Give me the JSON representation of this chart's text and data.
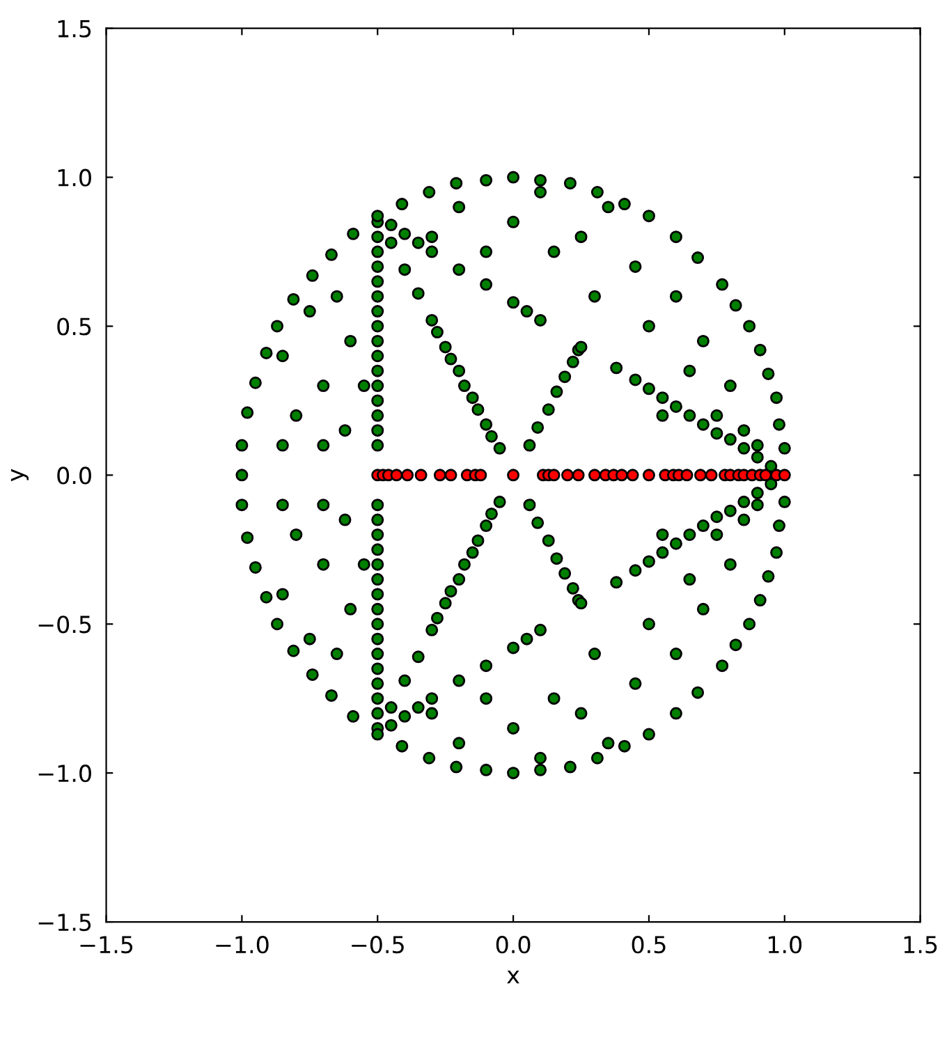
{
  "chart_data": {
    "type": "scatter",
    "xlabel": "x",
    "ylabel": "y",
    "xlim": [
      -1.5,
      1.5
    ],
    "ylim": [
      -1.5,
      1.5
    ],
    "xticks": [
      {
        "value": -1.5,
        "label": "−1.5"
      },
      {
        "value": -1.0,
        "label": "−1.0"
      },
      {
        "value": -0.5,
        "label": "−0.5"
      },
      {
        "value": 0,
        "label": "0.0"
      },
      0.5,
      {
        "value": 1,
        "label": "1.0"
      },
      1.5
    ],
    "yticks": [
      {
        "value": -1.5,
        "label": "−1.5"
      },
      {
        "value": -1.0,
        "label": "−1.0"
      },
      {
        "value": -0.5,
        "label": "−0.5"
      },
      {
        "value": 0,
        "label": "0.0"
      },
      0.5,
      {
        "value": 1,
        "label": "1.0"
      },
      1.5
    ],
    "grid": false,
    "marker": "circle",
    "series": [
      {
        "color": "#007f00",
        "x": [
          1.0,
          0.98,
          0.97,
          0.94,
          0.91,
          0.87,
          0.82,
          0.77,
          0.68,
          0.6,
          0.5,
          0.41,
          0.31,
          0.21,
          0.1,
          0,
          -0.1,
          -0.21,
          -0.31,
          -0.41,
          -0.59,
          -0.67,
          -0.74,
          -0.81,
          -0.87,
          -0.91,
          -0.95,
          -0.98,
          -1.0,
          -0.85,
          -0.8,
          -0.7,
          -0.75,
          -0.65,
          -0.6,
          -0.62,
          -0.7,
          -0.85,
          -0.55,
          -0.3,
          -0.2,
          -0.1,
          0,
          0.1,
          0.15,
          0.25,
          0.3,
          0.35,
          0.45,
          0.5,
          0.6,
          0.65,
          0.7,
          0.8,
          0.85,
          0.75,
          0.9,
          0.55,
          -0.5,
          -0.5,
          -0.5,
          -0.5,
          -0.5,
          -0.5,
          -0.5,
          -0.5,
          -0.5,
          -0.5,
          -0.5,
          -0.5,
          -0.5,
          -0.5,
          -0.5,
          -0.5,
          -0.05,
          -0.08,
          -0.1,
          -0.13,
          -0.15,
          -0.18,
          -0.2,
          -0.23,
          -0.25,
          -0.28,
          -0.3,
          -0.35,
          -0.4,
          -0.45,
          -0.45,
          -0.4,
          -0.35,
          -0.3,
          -0.2,
          -0.1,
          0.0,
          0.05,
          0.1,
          0.38,
          0.45,
          0.5,
          0.55,
          0.6,
          0.65,
          0.7,
          0.75,
          0.8,
          0.85,
          0.9,
          0.95,
          0.06,
          0.09,
          0.13,
          0.16,
          0.19,
          0.22,
          0.24,
          0.25,
          -0.5,
          1.0,
          0.98,
          0.97,
          0.94,
          0.91,
          0.87,
          0.82,
          0.77,
          0.68,
          0.6,
          0.5,
          0.41,
          0.31,
          0.21,
          0.1,
          0,
          -0.1,
          -0.21,
          -0.31,
          -0.41,
          -0.59,
          -0.67,
          -0.74,
          -0.81,
          -0.87,
          -0.91,
          -0.95,
          -0.98,
          -1.0,
          -0.85,
          -0.8,
          -0.7,
          -0.75,
          -0.65,
          -0.6,
          -0.62,
          -0.7,
          -0.85,
          -0.55,
          -0.3,
          -0.2,
          -0.1,
          0,
          0.1,
          0.15,
          0.25,
          0.3,
          0.35,
          0.45,
          0.5,
          0.6,
          0.65,
          0.7,
          0.8,
          0.85,
          0.75,
          0.9,
          0.55,
          -0.5,
          -0.5,
          -0.5,
          -0.5,
          -0.5,
          -0.5,
          -0.5,
          -0.5,
          -0.5,
          -0.5,
          -0.5,
          -0.5,
          -0.5,
          -0.5,
          -0.5,
          -0.5,
          -0.05,
          -0.08,
          -0.1,
          -0.13,
          -0.15,
          -0.18,
          -0.2,
          -0.23,
          -0.25,
          -0.28,
          -0.3,
          -0.35,
          -0.4,
          -0.45,
          -0.45,
          -0.4,
          -0.35,
          -0.3,
          -0.2,
          -0.1,
          0.0,
          0.05,
          0.1,
          0.38,
          0.45,
          0.5,
          0.55,
          0.6,
          0.65,
          0.7,
          0.75,
          0.8,
          0.85,
          0.9,
          0.95,
          0.06,
          0.09,
          0.13,
          0.16,
          0.19,
          0.22,
          0.24,
          0.25,
          -0.5,
          -1.0
        ],
        "values": [
          0.09,
          0.17,
          0.26,
          0.34,
          0.42,
          0.5,
          0.57,
          0.64,
          0.73,
          0.8,
          0.87,
          0.91,
          0.95,
          0.98,
          0.99,
          1.0,
          0.99,
          0.98,
          0.95,
          0.91,
          0.81,
          0.74,
          0.67,
          0.59,
          0.5,
          0.41,
          0.31,
          0.21,
          0.1,
          0.4,
          0.2,
          0.3,
          0.55,
          0.6,
          0.45,
          0.15,
          0.1,
          0.1,
          0.3,
          0.8,
          0.9,
          0.75,
          0.85,
          0.95,
          0.75,
          0.8,
          0.6,
          0.9,
          0.7,
          0.5,
          0.6,
          0.35,
          0.45,
          0.3,
          0.15,
          0.2,
          0.1,
          0.2,
          0.1,
          0.15,
          0.2,
          0.25,
          0.3,
          0.35,
          0.4,
          0.45,
          0.5,
          0.55,
          0.6,
          0.65,
          0.7,
          0.75,
          0.8,
          0.85,
          0.09,
          0.13,
          0.17,
          0.22,
          0.26,
          0.3,
          0.35,
          0.39,
          0.43,
          0.48,
          0.52,
          0.61,
          0.69,
          0.78,
          0.84,
          0.81,
          0.78,
          0.75,
          0.69,
          0.64,
          0.58,
          0.55,
          0.52,
          0.36,
          0.32,
          0.29,
          0.26,
          0.23,
          0.2,
          0.17,
          0.14,
          0.12,
          0.09,
          0.06,
          0.03,
          0.1,
          0.16,
          0.22,
          0.28,
          0.33,
          0.38,
          0.42,
          0.43,
          0.87,
          -0.09,
          -0.17,
          -0.26,
          -0.34,
          -0.42,
          -0.5,
          -0.57,
          -0.64,
          -0.73,
          -0.8,
          -0.87,
          -0.91,
          -0.95,
          -0.98,
          -0.99,
          -1.0,
          -0.99,
          -0.98,
          -0.95,
          -0.91,
          -0.81,
          -0.74,
          -0.67,
          -0.59,
          -0.5,
          -0.41,
          -0.31,
          -0.21,
          -0.1,
          -0.4,
          -0.2,
          -0.3,
          -0.55,
          -0.6,
          -0.45,
          -0.15,
          -0.1,
          -0.1,
          -0.3,
          -0.8,
          -0.9,
          -0.75,
          -0.85,
          -0.95,
          -0.75,
          -0.8,
          -0.6,
          -0.9,
          -0.7,
          -0.5,
          -0.6,
          -0.35,
          -0.45,
          -0.3,
          -0.15,
          -0.2,
          -0.1,
          -0.2,
          -0.1,
          -0.15,
          -0.2,
          -0.25,
          -0.3,
          -0.35,
          -0.4,
          -0.45,
          -0.5,
          -0.55,
          -0.6,
          -0.65,
          -0.7,
          -0.75,
          -0.8,
          -0.85,
          -0.09,
          -0.13,
          -0.17,
          -0.22,
          -0.26,
          -0.3,
          -0.35,
          -0.39,
          -0.43,
          -0.48,
          -0.52,
          -0.61,
          -0.69,
          -0.78,
          -0.84,
          -0.81,
          -0.78,
          -0.75,
          -0.69,
          -0.64,
          -0.58,
          -0.55,
          -0.52,
          -0.36,
          -0.32,
          -0.29,
          -0.26,
          -0.23,
          -0.2,
          -0.17,
          -0.14,
          -0.12,
          -0.09,
          -0.06,
          -0.03,
          -0.1,
          -0.16,
          -0.22,
          -0.28,
          -0.33,
          -0.38,
          -0.42,
          -0.43,
          -0.87,
          0.0
        ]
      },
      {
        "color": "#ff0000",
        "x": [
          -0.5,
          -0.48,
          -0.46,
          -0.43,
          -0.39,
          -0.34,
          -0.27,
          -0.23,
          -0.17,
          -0.14,
          -0.12,
          0.0,
          0.11,
          0.13,
          0.15,
          0.2,
          0.24,
          0.3,
          0.34,
          0.37,
          0.4,
          0.44,
          0.5,
          0.56,
          0.59,
          0.61,
          0.64,
          0.69,
          0.73,
          0.78,
          0.8,
          0.83,
          0.85,
          0.88,
          0.91,
          0.93,
          0.97,
          1.0
        ],
        "values": [
          0,
          0,
          0,
          0,
          0,
          0,
          0,
          0,
          0,
          0,
          0,
          0,
          0,
          0,
          0,
          0,
          0,
          0,
          0,
          0,
          0,
          0,
          0,
          0,
          0,
          0,
          0,
          0,
          0,
          0,
          0,
          0,
          0,
          0,
          0,
          0,
          0,
          0
        ]
      }
    ]
  }
}
